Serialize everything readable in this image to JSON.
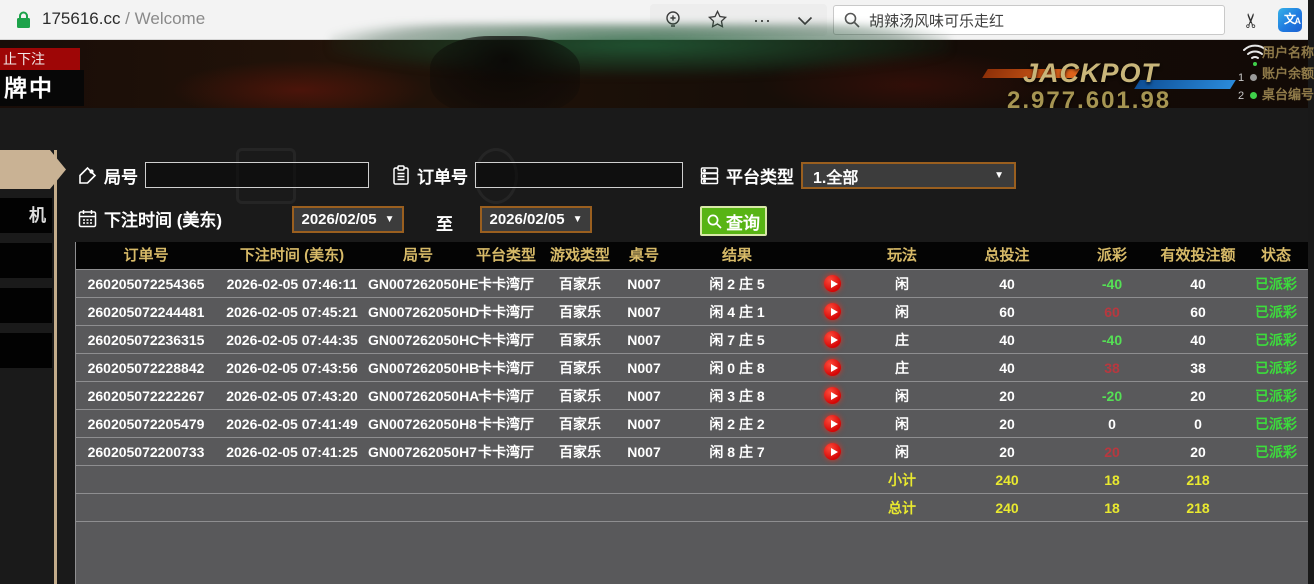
{
  "browser": {
    "url_host": "175616.cc",
    "url_path": " / Welcome",
    "search_text": "胡辣汤风味可乐走红",
    "ellipsis": "···"
  },
  "banner": {
    "stop_bet_label": "止下注",
    "dealing_label": "牌中",
    "jackpot_label": "JACKPOT",
    "jackpot_amount": "2,977,601.98",
    "info_labels": {
      "user": "用户名称",
      "balance": "账户余额",
      "table": "桌台编号"
    },
    "channels": [
      {
        "num": "1",
        "dot": "#9a9a9a"
      },
      {
        "num": "2",
        "dot": "#3fd04a"
      }
    ]
  },
  "sidebar": {
    "items": [
      {
        "label": "",
        "active": true
      },
      {
        "label": "机",
        "active": false
      },
      {
        "label": "",
        "active": false
      },
      {
        "label": "",
        "active": false
      },
      {
        "label": "",
        "active": false
      }
    ]
  },
  "filters": {
    "round_label": "局号",
    "order_label": "订单号",
    "platform_label": "平台类型",
    "platform_value": "1.全部",
    "bet_time_label": "下注时间 (美东)",
    "date_from": "2026/02/05",
    "date_to": "2026/02/05",
    "to_label": "至",
    "search_button": "查询",
    "caret": "▼"
  },
  "table": {
    "headers": [
      "订单号",
      "下注时间 (美东)",
      "局号",
      "平台类型",
      "游戏类型",
      "桌号",
      "结果",
      "",
      "玩法",
      "总投注",
      "派彩",
      "有效投注额",
      "状态"
    ],
    "rows": [
      {
        "order_id": "260205072254365",
        "bet_time": "2026-02-05 07:46:11",
        "round_id": "GN007262050HE",
        "platform": "卡卡湾厅",
        "game_type": "百家乐",
        "table_no": "N007",
        "result": "闲 2 庄 5",
        "play_type": "闲",
        "total_bet": "40",
        "payout": "-40",
        "payout_class": "neg",
        "valid_bet": "40",
        "status": "已派彩"
      },
      {
        "order_id": "260205072244481",
        "bet_time": "2026-02-05 07:45:21",
        "round_id": "GN007262050HD",
        "platform": "卡卡湾厅",
        "game_type": "百家乐",
        "table_no": "N007",
        "result": "闲 4 庄 1",
        "play_type": "闲",
        "total_bet": "60",
        "payout": "60",
        "payout_class": "pos",
        "valid_bet": "60",
        "status": "已派彩"
      },
      {
        "order_id": "260205072236315",
        "bet_time": "2026-02-05 07:44:35",
        "round_id": "GN007262050HC",
        "platform": "卡卡湾厅",
        "game_type": "百家乐",
        "table_no": "N007",
        "result": "闲 7 庄 5",
        "play_type": "庄",
        "total_bet": "40",
        "payout": "-40",
        "payout_class": "neg",
        "valid_bet": "40",
        "status": "已派彩"
      },
      {
        "order_id": "260205072228842",
        "bet_time": "2026-02-05 07:43:56",
        "round_id": "GN007262050HB",
        "platform": "卡卡湾厅",
        "game_type": "百家乐",
        "table_no": "N007",
        "result": "闲 0 庄 8",
        "play_type": "庄",
        "total_bet": "40",
        "payout": "38",
        "payout_class": "pos",
        "valid_bet": "38",
        "status": "已派彩"
      },
      {
        "order_id": "260205072222267",
        "bet_time": "2026-02-05 07:43:20",
        "round_id": "GN007262050HA",
        "platform": "卡卡湾厅",
        "game_type": "百家乐",
        "table_no": "N007",
        "result": "闲 3 庄 8",
        "play_type": "闲",
        "total_bet": "20",
        "payout": "-20",
        "payout_class": "neg",
        "valid_bet": "20",
        "status": "已派彩"
      },
      {
        "order_id": "260205072205479",
        "bet_time": "2026-02-05 07:41:49",
        "round_id": "GN007262050H8",
        "platform": "卡卡湾厅",
        "game_type": "百家乐",
        "table_no": "N007",
        "result": "闲 2 庄 2",
        "play_type": "闲",
        "total_bet": "20",
        "payout": "0",
        "payout_class": "zero",
        "valid_bet": "0",
        "status": "已派彩"
      },
      {
        "order_id": "260205072200733",
        "bet_time": "2026-02-05 07:41:25",
        "round_id": "GN007262050H7",
        "platform": "卡卡湾厅",
        "game_type": "百家乐",
        "table_no": "N007",
        "result": "闲 8 庄 7",
        "play_type": "闲",
        "total_bet": "20",
        "payout": "20",
        "payout_class": "pos",
        "valid_bet": "20",
        "status": "已派彩"
      }
    ],
    "subtotal": {
      "label": "小计",
      "total_bet": "240",
      "payout": "18",
      "valid_bet": "218"
    },
    "total": {
      "label": "总计",
      "total_bet": "240",
      "payout": "18",
      "valid_bet": "218"
    }
  },
  "colors": {
    "accent_green": "#58b414",
    "header_gold": "#d7ba68",
    "sum_yellow": "#e9e92f",
    "payout_win_red": "#b8383f",
    "payout_loss_green": "#55e055",
    "status_green": "#3cdc3c",
    "sidebar_tan": "#c9b294",
    "date_border_orange": "#9a5f1f"
  }
}
